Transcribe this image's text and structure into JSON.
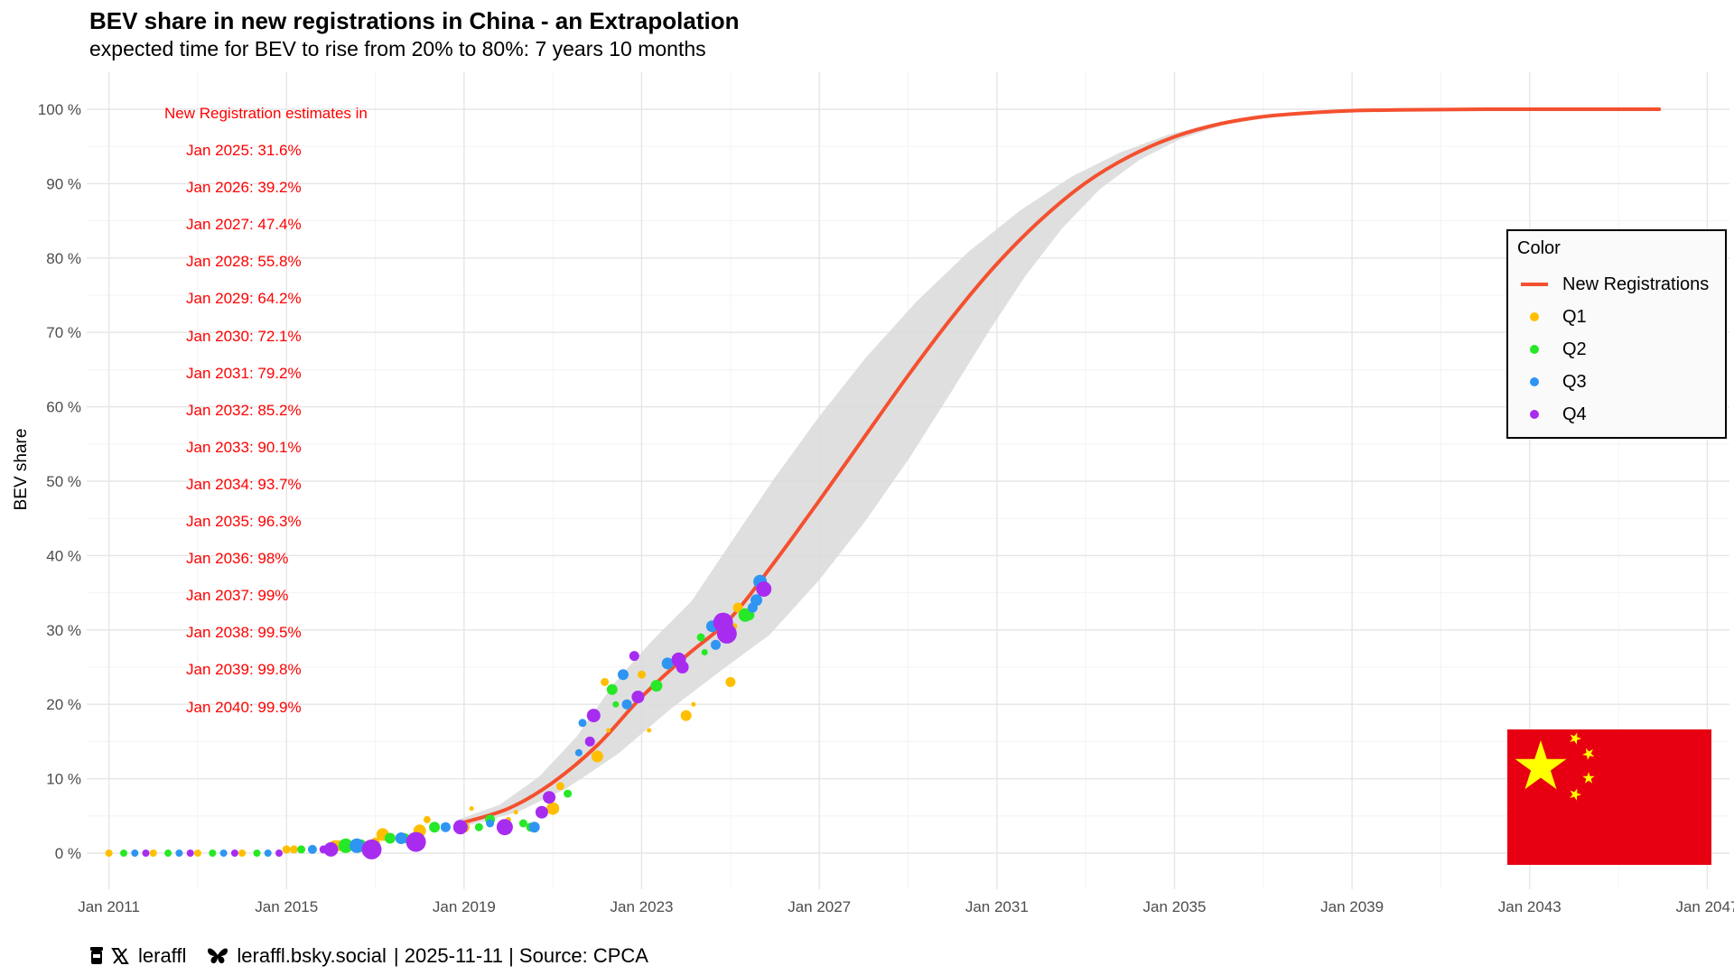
{
  "header": {
    "title": "BEV share in new registrations in China - an Extrapolation",
    "subtitle": "expected time for BEV to rise from 20% to 80%: 7 years 10 months"
  },
  "annotation": {
    "heading": "New Registration estimates in",
    "items": [
      "Jan 2025: 31.6%",
      "Jan 2026: 39.2%",
      "Jan 2027: 47.4%",
      "Jan 2028: 55.8%",
      "Jan 2029: 64.2%",
      "Jan 2030: 72.1%",
      "Jan 2031: 79.2%",
      "Jan 2032: 85.2%",
      "Jan 2033: 90.1%",
      "Jan 2034: 93.7%",
      "Jan 2035: 96.3%",
      "Jan 2036: 98%",
      "Jan 2037: 99%",
      "Jan 2038: 99.5%",
      "Jan 2039: 99.8%",
      "Jan 2040: 99.9%"
    ]
  },
  "legend": {
    "title": "Color",
    "items": [
      {
        "label": "New Registrations",
        "color": "#f4502f",
        "kind": "line"
      },
      {
        "label": "Q1",
        "color": "#ffbf00",
        "kind": "dot"
      },
      {
        "label": "Q2",
        "color": "#27e827",
        "kind": "dot"
      },
      {
        "label": "Q3",
        "color": "#2e95f2",
        "kind": "dot"
      },
      {
        "label": "Q4",
        "color": "#a82cf0",
        "kind": "dot"
      }
    ]
  },
  "caption": {
    "handle1": "leraffl",
    "handle2": "leraffl.bsky.social",
    "meta": "| 2025-11-11 | Source: CPCA",
    "icons": [
      "coffee-icon",
      "x-logo-icon",
      "butterfly-icon"
    ]
  },
  "flag": {
    "name": "china-flag",
    "red": "#e60012",
    "yellow": "#ffff00"
  },
  "chart_data": {
    "type": "scatter",
    "ylabel": "BEV share",
    "xlabel": "",
    "x_ticks": [
      "Jan 2011",
      "Jan 2015",
      "Jan 2019",
      "Jan 2023",
      "Jan 2027",
      "Jan 2031",
      "Jan 2035",
      "Jan 2039",
      "Jan 2043",
      "Jan 2047"
    ],
    "y_ticks": [
      "0 %",
      "10 %",
      "20 %",
      "30 %",
      "40 %",
      "50 %",
      "60 %",
      "70 %",
      "80 %",
      "90 %",
      "100 %"
    ],
    "xlim": [
      "2010-07",
      "2047-07"
    ],
    "ylim": [
      -2,
      103
    ],
    "grid": true,
    "legend_position": "right",
    "fit_line": {
      "name": "New Registrations",
      "color": "#f4502f",
      "x_start": "2018-12",
      "x_end": "2045-12",
      "points": [
        [
          "2018-12",
          4.0
        ],
        [
          "2020-01",
          6.0
        ],
        [
          "2021-01",
          9.5
        ],
        [
          "2022-01",
          14.5
        ],
        [
          "2023-01",
          21.0
        ],
        [
          "2024-01",
          26.5
        ],
        [
          "2025-01",
          31.6
        ],
        [
          "2026-01",
          39.2
        ],
        [
          "2027-01",
          47.4
        ],
        [
          "2028-01",
          55.8
        ],
        [
          "2029-01",
          64.2
        ],
        [
          "2030-01",
          72.1
        ],
        [
          "2031-01",
          79.2
        ],
        [
          "2032-01",
          85.2
        ],
        [
          "2033-01",
          90.1
        ],
        [
          "2034-01",
          93.7
        ],
        [
          "2035-01",
          96.3
        ],
        [
          "2036-01",
          98.0
        ],
        [
          "2037-01",
          99.0
        ],
        [
          "2038-01",
          99.5
        ],
        [
          "2039-01",
          99.8
        ],
        [
          "2040-01",
          99.9
        ],
        [
          "2042-01",
          100.0
        ],
        [
          "2045-12",
          100.0
        ]
      ],
      "band_color": "#d9d9d9"
    },
    "series": [
      {
        "name": "Q1",
        "color": "#ffbf00",
        "points": [
          [
            "2011-01",
            0,
            8
          ],
          [
            "2012-01",
            0,
            8
          ],
          [
            "2013-01",
            0,
            8
          ],
          [
            "2014-01",
            0,
            8
          ],
          [
            "2015-01",
            0.5,
            9
          ],
          [
            "2015-03",
            0.5,
            9
          ],
          [
            "2016-02",
            1,
            12
          ],
          [
            "2016-03",
            1,
            12
          ],
          [
            "2017-01",
            1.5,
            10
          ],
          [
            "2017-03",
            2.5,
            14
          ],
          [
            "2018-01",
            3,
            14
          ],
          [
            "2018-03",
            4.5,
            8
          ],
          [
            "2019-01",
            3.5,
            12
          ],
          [
            "2019-03",
            6,
            5
          ],
          [
            "2020-01",
            4.5,
            6
          ],
          [
            "2020-03",
            5.5,
            5
          ],
          [
            "2021-01",
            6,
            14
          ],
          [
            "2021-03",
            9,
            9
          ],
          [
            "2022-01",
            13,
            13
          ],
          [
            "2022-03",
            23,
            9
          ],
          [
            "2022-04",
            16.5,
            5
          ],
          [
            "2023-01",
            24,
            9
          ],
          [
            "2023-03",
            16.5,
            5
          ],
          [
            "2024-01",
            18.5,
            12
          ],
          [
            "2024-03",
            20,
            5
          ],
          [
            "2025-01",
            23,
            11
          ],
          [
            "2025-03",
            33,
            11
          ],
          [
            "2025-02",
            30.5,
            7
          ]
        ]
      },
      {
        "name": "Q2",
        "color": "#27e827",
        "points": [
          [
            "2011-05",
            0,
            8
          ],
          [
            "2012-05",
            0,
            8
          ],
          [
            "2013-05",
            0,
            8
          ],
          [
            "2014-05",
            0,
            8
          ],
          [
            "2015-05",
            0.5,
            9
          ],
          [
            "2016-05",
            1,
            16
          ],
          [
            "2016-09",
            1,
            14
          ],
          [
            "2017-05",
            2,
            12
          ],
          [
            "2017-09",
            2,
            11
          ],
          [
            "2018-05",
            3.5,
            12
          ],
          [
            "2019-05",
            3.5,
            9
          ],
          [
            "2019-08",
            4.5,
            11
          ],
          [
            "2020-05",
            4,
            9
          ],
          [
            "2020-07",
            3.5,
            10
          ],
          [
            "2021-05",
            8,
            9
          ],
          [
            "2022-05",
            22,
            12
          ],
          [
            "2022-06",
            20,
            7
          ],
          [
            "2023-05",
            22.5,
            13
          ],
          [
            "2024-05",
            29,
            9
          ],
          [
            "2024-06",
            27,
            7
          ],
          [
            "2025-05",
            32,
            15
          ],
          [
            "2025-06",
            32,
            12
          ]
        ]
      },
      {
        "name": "Q3",
        "color": "#2e95f2",
        "points": [
          [
            "2011-08",
            0,
            8
          ],
          [
            "2012-08",
            0,
            8
          ],
          [
            "2013-08",
            0,
            8
          ],
          [
            "2014-08",
            0,
            8
          ],
          [
            "2015-08",
            0.5,
            10
          ],
          [
            "2016-08",
            1,
            16
          ],
          [
            "2017-08",
            2,
            13
          ],
          [
            "2018-08",
            3.5,
            11
          ],
          [
            "2019-08",
            4,
            9
          ],
          [
            "2020-08",
            3.5,
            12
          ],
          [
            "2021-08",
            13.5,
            8
          ],
          [
            "2021-09",
            17.5,
            9
          ],
          [
            "2022-08",
            24,
            12
          ],
          [
            "2022-09",
            20,
            11
          ],
          [
            "2023-08",
            25.5,
            13
          ],
          [
            "2024-08",
            30.5,
            13
          ],
          [
            "2024-09",
            28,
            11
          ],
          [
            "2025-08",
            34,
            13
          ],
          [
            "2025-09",
            36.5,
            15
          ],
          [
            "2025-07",
            33,
            11
          ]
        ]
      },
      {
        "name": "Q4",
        "color": "#a82cf0",
        "points": [
          [
            "2011-11",
            0,
            8
          ],
          [
            "2012-11",
            0,
            8
          ],
          [
            "2013-11",
            0,
            8
          ],
          [
            "2014-11",
            0,
            8
          ],
          [
            "2015-11",
            0.5,
            9
          ],
          [
            "2016-01",
            0.5,
            16
          ],
          [
            "2016-12",
            0.5,
            22
          ],
          [
            "2017-12",
            1.5,
            22
          ],
          [
            "2018-12",
            3.5,
            16
          ],
          [
            "2019-12",
            3.5,
            18
          ],
          [
            "2020-10",
            5.5,
            14
          ],
          [
            "2020-12",
            7.5,
            14
          ],
          [
            "2021-11",
            15,
            11
          ],
          [
            "2021-12",
            18.5,
            15
          ],
          [
            "2022-12",
            21,
            14
          ],
          [
            "2022-11",
            26.5,
            11
          ],
          [
            "2023-11",
            26,
            16
          ],
          [
            "2023-12",
            25,
            14
          ],
          [
            "2024-11",
            31,
            22
          ],
          [
            "2024-12",
            29.5,
            22
          ],
          [
            "2025-10",
            35.5,
            17
          ]
        ]
      }
    ]
  }
}
